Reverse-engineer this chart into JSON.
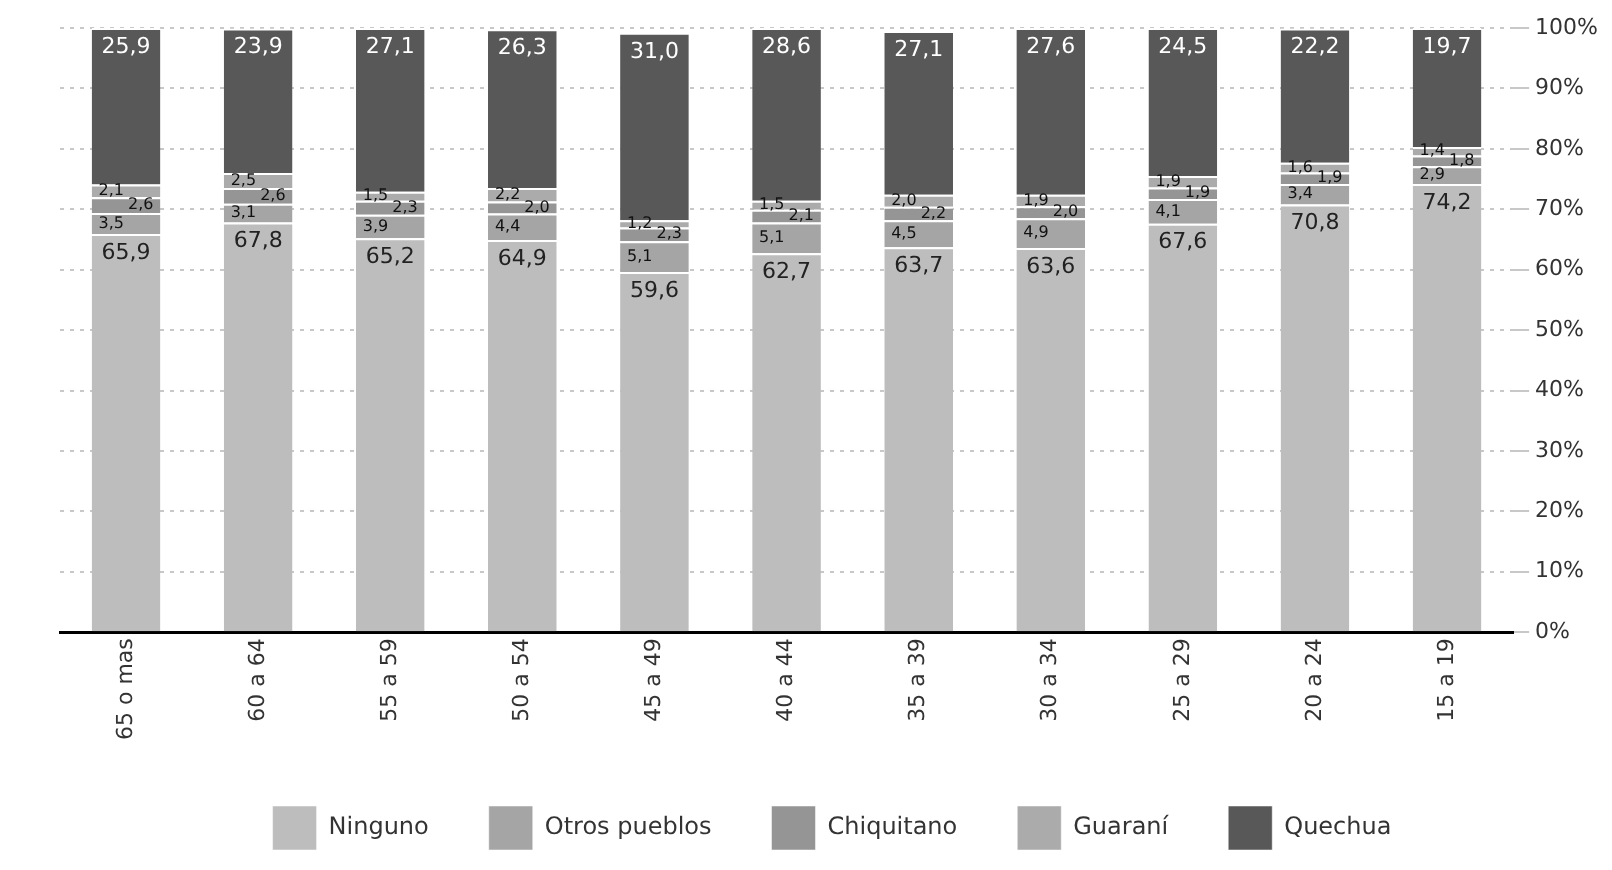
{
  "chart_data": {
    "type": "bar",
    "stacked": true,
    "categories": [
      "65 o mas",
      "60 a 64",
      "55 a 59",
      "50 a 54",
      "45 a 49",
      "40 a 44",
      "35 a 39",
      "30 a 34",
      "25 a 29",
      "20 a 24",
      "15 a 19"
    ],
    "series": [
      {
        "name": "Ninguno",
        "color": "#bdbdbd",
        "values": [
          65.9,
          67.8,
          65.2,
          64.9,
          59.6,
          62.7,
          63.7,
          63.6,
          67.6,
          70.8,
          74.2
        ],
        "value_labels": [
          "65,9",
          "67,8",
          "65,2",
          "64,9",
          "59,6",
          "62,7",
          "63,7",
          "63,6",
          "67,6",
          "70,8",
          "74,2"
        ]
      },
      {
        "name": "Otros pueblos",
        "color": "#a5a5a5",
        "values": [
          3.5,
          3.1,
          3.9,
          4.4,
          5.1,
          5.1,
          4.5,
          4.9,
          4.1,
          3.4,
          2.9
        ],
        "value_labels": [
          "3,5",
          "3,1",
          "3,9",
          "4,4",
          "5,1",
          "5,1",
          "4,5",
          "4,9",
          "4,1",
          "3,4",
          "2,9"
        ]
      },
      {
        "name": "Chiquitano",
        "color": "#959595",
        "values": [
          2.6,
          2.6,
          2.3,
          2.0,
          2.3,
          2.1,
          2.2,
          2.0,
          1.9,
          1.9,
          1.8
        ],
        "value_labels": [
          "2,6",
          "2,6",
          "2,3",
          "2,0",
          "2,3",
          "2,1",
          "2,2",
          "2,0",
          "1,9",
          "1,9",
          "1,8"
        ]
      },
      {
        "name": "Guaraní",
        "color": "#ababab",
        "values": [
          2.1,
          2.5,
          1.5,
          2.2,
          1.2,
          1.5,
          2.0,
          1.9,
          1.9,
          1.6,
          1.4
        ],
        "value_labels": [
          "2,1",
          "2,5",
          "1,5",
          "2,2",
          "1,2",
          "1,5",
          "2,0",
          "1,9",
          "1,9",
          "1,6",
          "1,4"
        ]
      },
      {
        "name": "Quechua",
        "color": "#585858",
        "values": [
          25.9,
          23.9,
          27.1,
          26.3,
          31.0,
          28.6,
          27.1,
          27.6,
          24.5,
          22.2,
          19.7
        ],
        "value_labels": [
          "25,9",
          "23,9",
          "27,1",
          "26,3",
          "31,0",
          "28,6",
          "27,1",
          "27,6",
          "24,5",
          "22,2",
          "19,7"
        ]
      }
    ],
    "ylim": [
      0,
      100
    ],
    "yticks": [
      {
        "value": 0,
        "label": "0%"
      },
      {
        "value": 10,
        "label": "10%"
      },
      {
        "value": 20,
        "label": "20%"
      },
      {
        "value": 30,
        "label": "30%"
      },
      {
        "value": 40,
        "label": "40%"
      },
      {
        "value": 50,
        "label": "50%"
      },
      {
        "value": 60,
        "label": "60%"
      },
      {
        "value": 70,
        "label": "70%"
      },
      {
        "value": 80,
        "label": "80%"
      },
      {
        "value": 90,
        "label": "90%"
      },
      {
        "value": 100,
        "label": "100%"
      }
    ],
    "grid": "y",
    "legend": "bottom"
  }
}
